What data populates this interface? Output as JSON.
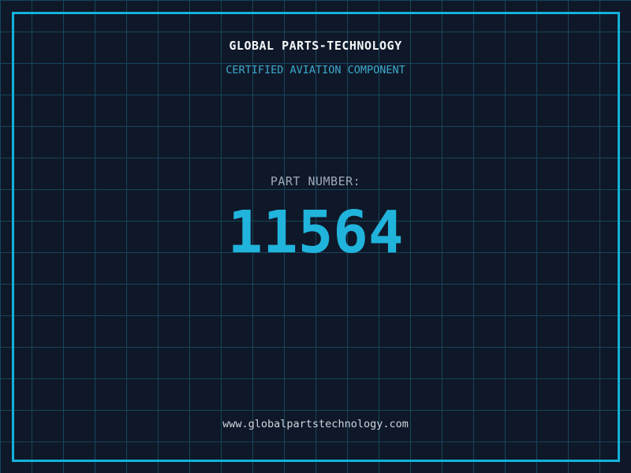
{
  "header": {
    "company": "GLOBAL PARTS-TECHNOLOGY",
    "tagline": "CERTIFIED AVIATION COMPONENT"
  },
  "part": {
    "label": "PART NUMBER:",
    "number": "11564"
  },
  "footer": {
    "website": "www.globalpartstechnology.com"
  },
  "colors": {
    "background": "#0f1828",
    "grid_line": "#17455c",
    "frame": "#14b1d9",
    "accent_cyan": "#20b4dc",
    "subtitle_cyan": "#3da9cd",
    "title_white": "#f4f6f8",
    "label_gray": "#9fa9b6",
    "footer_gray": "#cfd5dd"
  }
}
